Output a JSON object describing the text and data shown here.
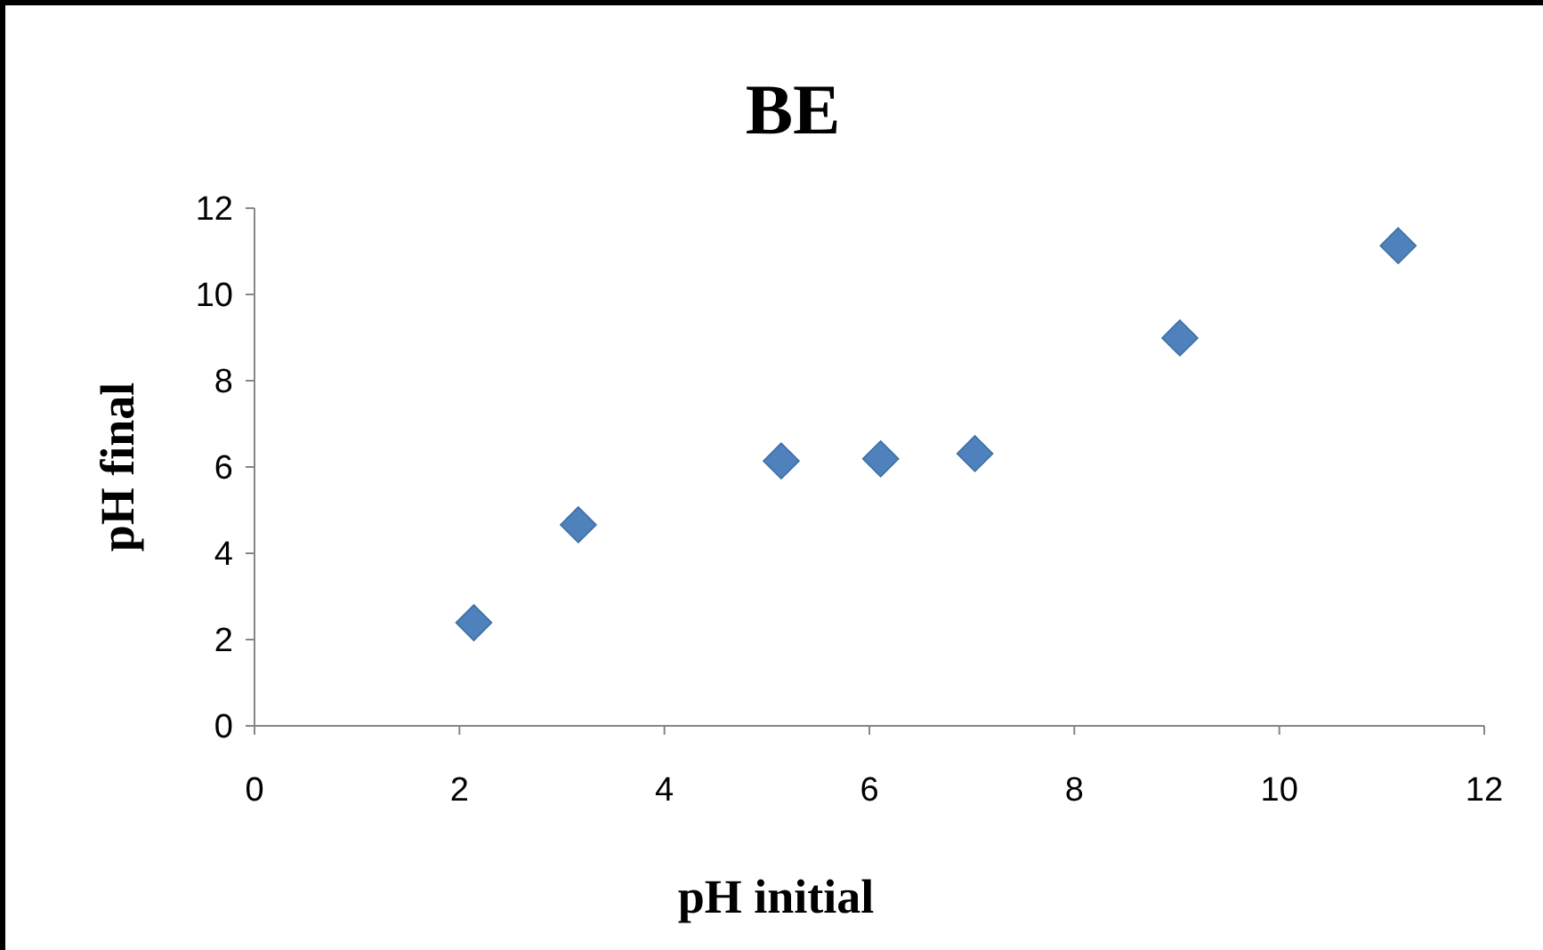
{
  "chart_data": {
    "type": "scatter",
    "title": "BE",
    "xlabel": "pH initial",
    "ylabel": "pH final",
    "x": [
      2.14,
      3.16,
      5.14,
      6.11,
      7.03,
      9.03,
      11.16
    ],
    "values": [
      2.39,
      4.66,
      6.14,
      6.19,
      6.31,
      8.99,
      11.13
    ],
    "color": "#4f81bd",
    "marker": "diamond",
    "xlim": [
      0,
      12
    ],
    "xticks": [
      0,
      2,
      4,
      6,
      8,
      10,
      12
    ],
    "ylim": [
      0,
      12
    ],
    "yticks": [
      0,
      2,
      4,
      6,
      8,
      10,
      12
    ]
  }
}
